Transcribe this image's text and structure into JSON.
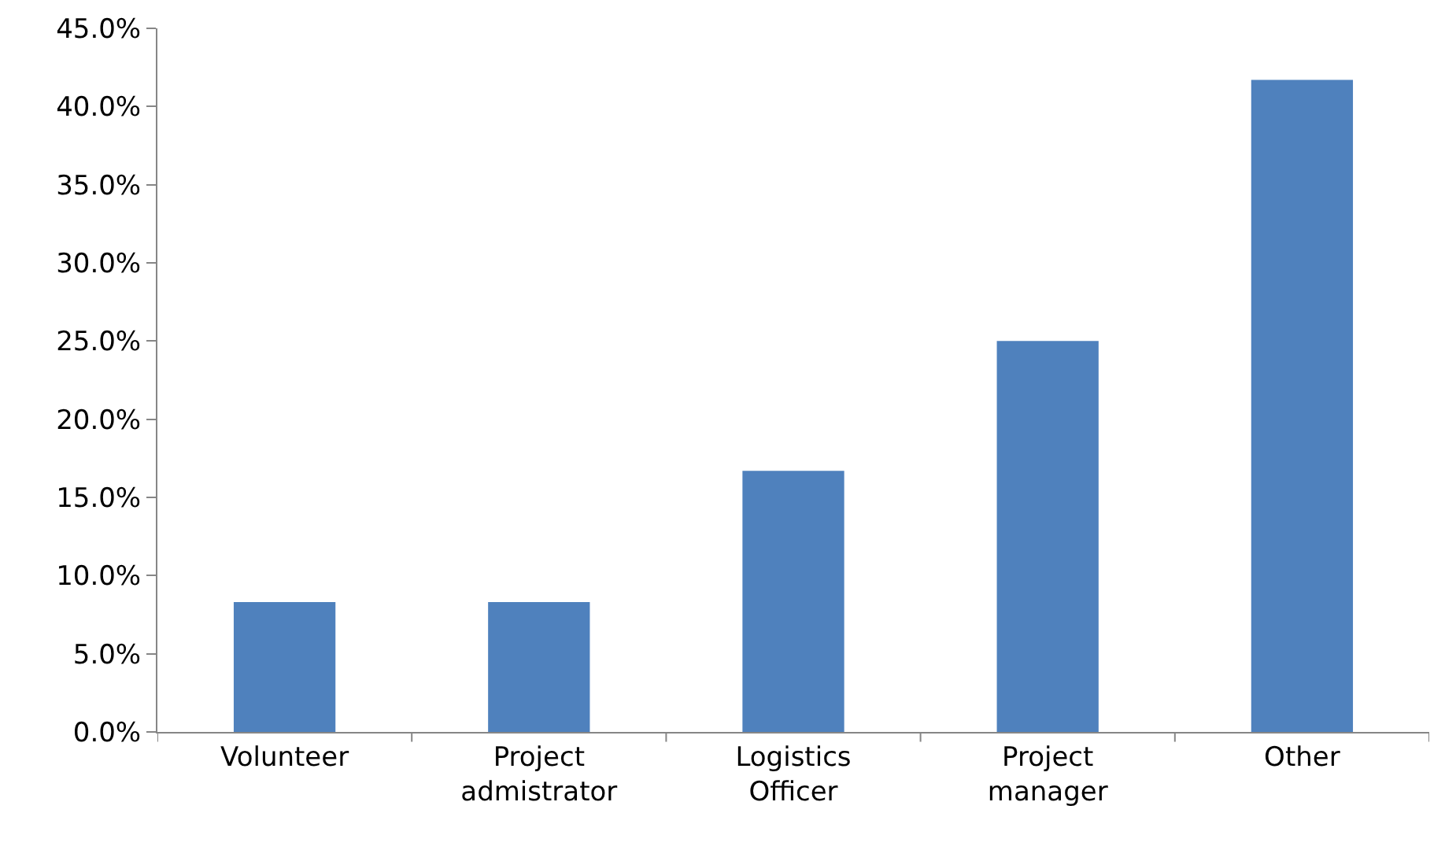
{
  "chart_data": {
    "type": "bar",
    "categories": [
      "Volunteer",
      "Project admistrator",
      "Logistics Officer",
      "Project manager",
      "Other"
    ],
    "values": [
      8.3,
      8.3,
      16.7,
      25.0,
      41.7
    ],
    "color": "#4f81bd",
    "ylim": [
      0,
      45
    ],
    "yticks": [
      {
        "value": 0,
        "label": "0.0%"
      },
      {
        "value": 5,
        "label": "5.0%"
      },
      {
        "value": 10,
        "label": "10.0%"
      },
      {
        "value": 15,
        "label": "15.0%"
      },
      {
        "value": 20,
        "label": "20.0%"
      },
      {
        "value": 25,
        "label": "25.0%"
      },
      {
        "value": 30,
        "label": "30.0%"
      },
      {
        "value": 35,
        "label": "35.0%"
      },
      {
        "value": 40,
        "label": "40.0%"
      },
      {
        "value": 45,
        "label": "45.0%"
      }
    ],
    "grid": false,
    "legend": false
  }
}
